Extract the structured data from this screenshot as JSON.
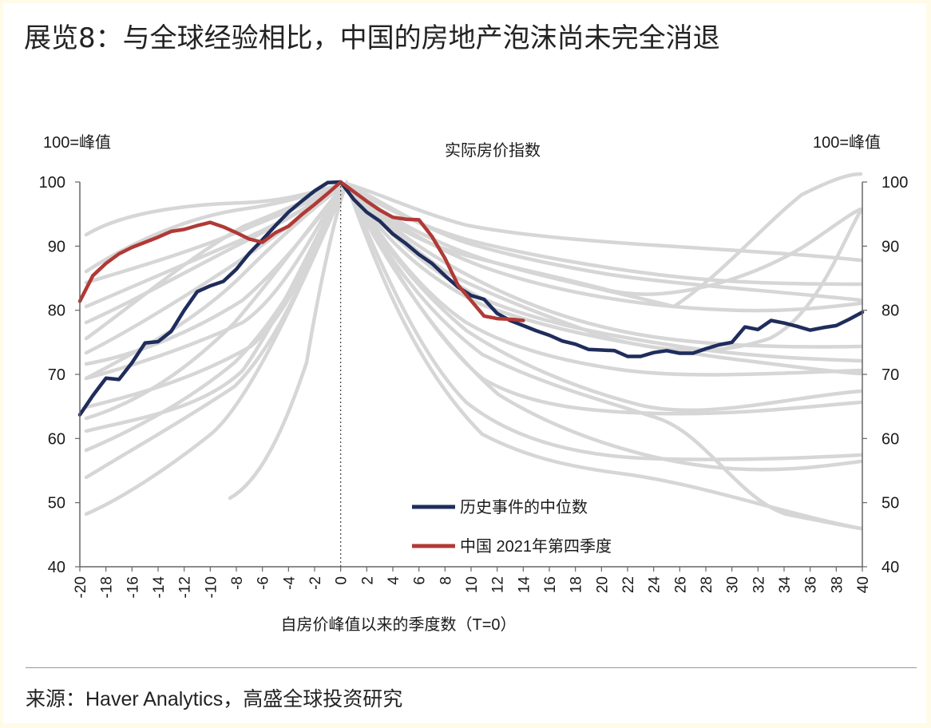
{
  "title": "展览8：与全球经验相比，中国的房地产泡沫尚未完全消退",
  "source": "来源：Haver Analytics，高盛全球投资研究",
  "chart_data": {
    "type": "line",
    "title": "实际房价指数",
    "y_unit_left": "100=峰值",
    "y_unit_right": "100=峰值",
    "xlabel": "自房价峰值以来的季度数（T=0）",
    "xlim": [
      -20,
      40
    ],
    "ylim": [
      40,
      100
    ],
    "x_ticks": [
      "-20",
      "-18",
      "-16",
      "-14",
      "-12",
      "-10",
      "-8",
      "-6",
      "-4",
      "-2",
      "0",
      "2",
      "4",
      "6",
      "8",
      "10",
      "12",
      "14",
      "16",
      "18",
      "20",
      "22",
      "24",
      "26",
      "28",
      "30",
      "32",
      "34",
      "36",
      "38",
      "40"
    ],
    "y_ticks": [
      "40",
      "50",
      "60",
      "70",
      "80",
      "90",
      "100"
    ],
    "grid": false,
    "legend_position": "bottom-center",
    "colors": {
      "median": "#1f2d5c",
      "china": "#b03a36",
      "episodes": "#d6d6d6"
    },
    "series": [
      {
        "name": "历史事件的中位数",
        "x": [
          -20,
          -19,
          -18,
          -17,
          -16,
          -15,
          -14,
          -13,
          -12,
          -11,
          -10,
          -9,
          -8,
          -7,
          -6,
          -5,
          -4,
          -3,
          -2,
          -1,
          0,
          1,
          2,
          3,
          4,
          5,
          6,
          7,
          8,
          9,
          10,
          11,
          12,
          13,
          14,
          15,
          16,
          17,
          18,
          19,
          20,
          21,
          22,
          23,
          24,
          25,
          26,
          27,
          28,
          29,
          30,
          31,
          32,
          33,
          34,
          35,
          36,
          37,
          38,
          39,
          40
        ],
        "values": [
          63.7,
          66.7,
          69.4,
          69.2,
          71.8,
          74.9,
          75.1,
          76.7,
          80.0,
          82.9,
          83.8,
          84.5,
          86.4,
          88.9,
          91.0,
          93.2,
          95.3,
          97.0,
          98.6,
          99.9,
          100,
          97.3,
          95.3,
          93.9,
          91.9,
          90.4,
          88.7,
          87.3,
          85.4,
          83.6,
          82.3,
          81.7,
          79.5,
          78.4,
          77.6,
          76.8,
          76.1,
          75.2,
          74.7,
          73.9,
          73.8,
          73.7,
          72.8,
          72.8,
          73.4,
          73.7,
          73.3,
          73.3,
          74.0,
          74.6,
          75.0,
          77.4,
          77.0,
          78.4,
          78.0,
          77.5,
          76.9,
          77.3,
          77.6,
          78.6,
          79.7
        ]
      },
      {
        "name": "中国 2021年第四季度",
        "x": [
          -20,
          -19,
          -18,
          -17,
          -16,
          -15,
          -14,
          -13,
          -12,
          -11,
          -10,
          -9,
          -8,
          -7,
          -6,
          -5,
          -4,
          -3,
          -2,
          -1,
          0,
          1,
          2,
          3,
          4,
          5,
          6,
          7,
          8,
          9,
          10,
          11,
          12,
          13,
          14
        ],
        "values": [
          81.4,
          85.4,
          87.3,
          88.8,
          89.8,
          90.6,
          91.4,
          92.3,
          92.6,
          93.2,
          93.7,
          93.0,
          92.1,
          91.1,
          90.6,
          92.1,
          93.1,
          94.9,
          96.5,
          98.2,
          100,
          98.5,
          97.0,
          95.6,
          94.5,
          94.2,
          94.1,
          91.5,
          88.1,
          83.9,
          81.5,
          79.1,
          78.7,
          78.6,
          78.4
        ]
      }
    ],
    "background_episodes_count": 25
  }
}
